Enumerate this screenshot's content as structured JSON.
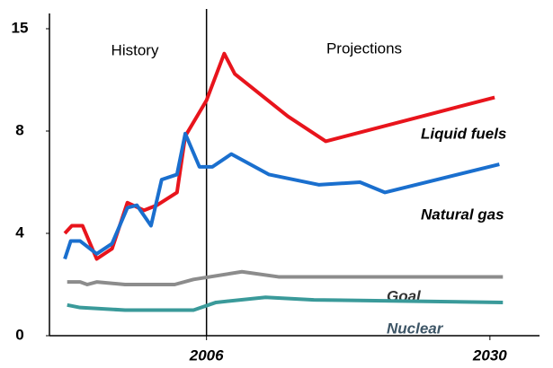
{
  "chart_data": {
    "type": "line",
    "annotations": [
      "History",
      "Projections"
    ],
    "xlim": [
      1992.7,
      2034.2
    ],
    "xticks": [
      2006,
      2030
    ],
    "vlines": [
      2006
    ],
    "ylim": [
      0,
      15
    ],
    "yticks": [
      0,
      4,
      8,
      15
    ],
    "y_scale": "piecewise-even-ticks",
    "series": [
      {
        "name": "Liquid fuels",
        "color": "#e8141c",
        "x": [
          1994,
          1994.6,
          1995.5,
          1996.7,
          1998,
          1999.3,
          2000.7,
          2001.8,
          2003.5,
          2004.2,
          2006,
          2007.5,
          2008.4,
          2012.9,
          2016.1,
          2030.4
        ],
        "values": [
          4.0,
          4.3,
          4.3,
          3.0,
          3.4,
          5.2,
          4.9,
          5.1,
          5.6,
          7.8,
          10.1,
          13.3,
          11.9,
          9.0,
          7.6,
          10.3
        ]
      },
      {
        "name": "Natural gas",
        "color": "#1a6fce",
        "x": [
          1994,
          1994.5,
          1995.3,
          1996.7,
          1998,
          1999.3,
          2000.1,
          2001.3,
          2002.2,
          2003.5,
          2004.2,
          2005.4,
          2006.5,
          2008.1,
          2011.3,
          2015.5,
          2019,
          2021.1,
          2030.8
        ],
        "values": [
          3.0,
          3.7,
          3.7,
          3.2,
          3.6,
          5.0,
          5.1,
          4.3,
          6.1,
          6.3,
          7.9,
          6.6,
          6.6,
          7.1,
          6.3,
          5.9,
          6.0,
          5.6,
          6.7
        ]
      },
      {
        "name": "Goal",
        "color": "#8c8c8c",
        "x": [
          1994.2,
          1995.3,
          1995.9,
          1996.7,
          1999.1,
          2003.3,
          2004.9,
          2009,
          2012.1,
          2031.1
        ],
        "values": [
          2.1,
          2.1,
          2.0,
          2.1,
          2.0,
          2.0,
          2.2,
          2.5,
          2.3,
          2.3
        ]
      },
      {
        "name": "Nuclear",
        "color": "#3a9a9a",
        "x": [
          1994.2,
          1995.3,
          1999.1,
          2004.9,
          2006.8,
          2011,
          2015.1,
          2031.1
        ],
        "values": [
          1.2,
          1.1,
          1.0,
          1.0,
          1.3,
          1.5,
          1.4,
          1.3
        ]
      }
    ]
  }
}
